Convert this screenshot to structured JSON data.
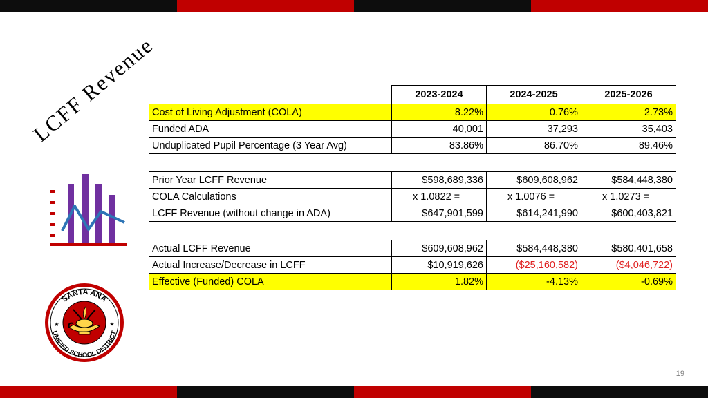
{
  "slide": {
    "title": "LCFF Revenue",
    "page_number": "19",
    "band_colors": [
      "#0d0d0d",
      "#c00000",
      "#0d0d0d",
      "#c00000"
    ],
    "highlight_color": "#ffff00",
    "negative_color": "#e02020"
  },
  "header": {
    "years": [
      "2023-2024",
      "2024-2025",
      "2025-2026"
    ]
  },
  "table1": {
    "rows": [
      {
        "label": "Cost of Living Adjustment (COLA)",
        "values": [
          "8.22%",
          "0.76%",
          "2.73%"
        ]
      },
      {
        "label": "Funded ADA",
        "values": [
          "40,001",
          "37,293",
          "35,403"
        ]
      },
      {
        "label": "Unduplicated Pupil Percentage (3 Year Avg)",
        "values": [
          "83.86%",
          "86.70%",
          "89.46%"
        ]
      }
    ]
  },
  "table2": {
    "rows": [
      {
        "label": "Prior Year LCFF Revenue",
        "values": [
          "$598,689,336",
          "$609,608,962",
          "$584,448,380"
        ]
      },
      {
        "label": "COLA Calculations",
        "values": [
          "x 1.0822 =",
          "x 1.0076 =",
          "x 1.0273 ="
        ]
      },
      {
        "label": "LCFF Revenue (without change in ADA)",
        "values": [
          "$647,901,599",
          "$614,241,990",
          "$600,403,821"
        ]
      }
    ]
  },
  "table3": {
    "rows": [
      {
        "label": "Actual LCFF Revenue",
        "values": [
          "$609,608,962",
          "$584,448,380",
          "$580,401,658"
        ]
      },
      {
        "label": "Actual Increase/Decrease in LCFF",
        "values": [
          "$10,919,626",
          "($25,160,582)",
          "($4,046,722)"
        ]
      },
      {
        "label": "Effective (Funded) COLA",
        "values": [
          "1.82%",
          "-4.13%",
          "-0.69%"
        ]
      }
    ]
  },
  "seal": {
    "top_text": "SANTA ANA",
    "bottom_text": "UNIFIED SCHOOL DISTRICT"
  },
  "icons": [
    "bar-chart-icon",
    "school-district-seal"
  ]
}
